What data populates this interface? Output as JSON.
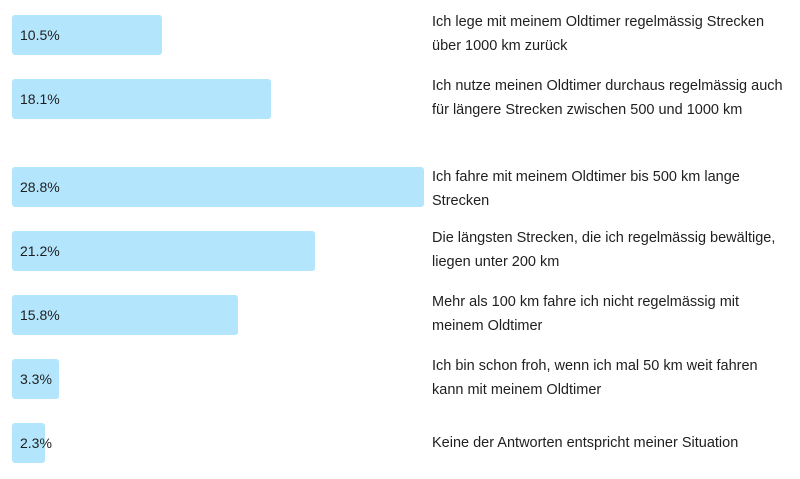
{
  "chart_data": {
    "type": "bar",
    "orientation": "horizontal",
    "bar_color": "#b3e5fc",
    "categories": [
      "Ich lege mit meinem Oldtimer regelmässig Strecken über 1000 km zurück",
      "Ich nutze meinen Oldtimer durchaus regelmässig auch für längere Strecken zwischen 500 und 1000 km",
      "Ich fahre mit meinem Oldtimer bis 500 km lange Strecken",
      "Die längsten Strecken, die ich regelmässig bewältige, liegen unter 200 km",
      "Mehr als 100 km fahre ich nicht regelmässig mit meinem Oldtimer",
      "Ich bin schon froh, wenn ich mal 50 km weit fahren kann mit meinem Oldtimer",
      "Keine der Antworten entspricht meiner Situation"
    ],
    "values": [
      10.5,
      18.1,
      28.8,
      21.2,
      15.8,
      3.3,
      2.3
    ],
    "value_labels": [
      "10.5%",
      "18.1%",
      "28.8%",
      "21.2%",
      "15.8%",
      "3.3%",
      "2.3%"
    ],
    "xlim": [
      0,
      28.8
    ],
    "grid": false,
    "legend": "none"
  }
}
